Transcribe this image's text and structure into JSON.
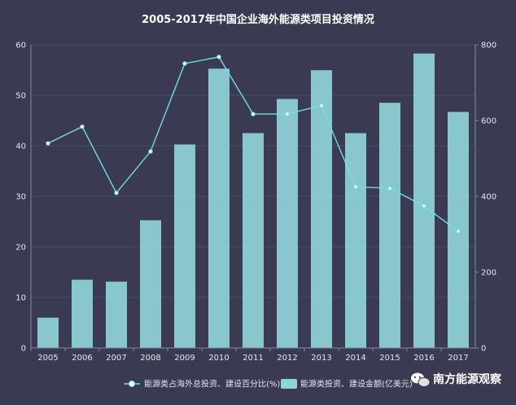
{
  "chart_data": {
    "type": "bar+line",
    "title": "2005-2017年中国企业海外能源类项目投资情况",
    "categories": [
      "2005",
      "2006",
      "2007",
      "2008",
      "2009",
      "2010",
      "2011",
      "2012",
      "2013",
      "2014",
      "2015",
      "2016",
      "2017"
    ],
    "series": [
      {
        "name": "能源类投资、建设金额(亿美元)",
        "type": "bar",
        "axis": "right",
        "values": [
          80,
          180,
          175,
          337,
          537,
          737,
          567,
          657,
          733,
          567,
          647,
          777,
          623
        ]
      },
      {
        "name": "能源类占海外总投资、建设百分比(%)",
        "type": "line",
        "axis": "left",
        "values": [
          40.5,
          43.8,
          30.7,
          38.9,
          56.3,
          57.6,
          46.3,
          46.3,
          48.0,
          31.9,
          31.6,
          28.1,
          23.1
        ]
      }
    ],
    "y_left": {
      "ylim": [
        0,
        60
      ],
      "ticks": [
        "0",
        "10",
        "20",
        "30",
        "40",
        "50",
        "60"
      ]
    },
    "y_right": {
      "ylim": [
        0,
        800
      ],
      "ticks": [
        "0",
        "200",
        "400",
        "600",
        "800"
      ]
    },
    "grid": true,
    "legend_position": "bottom"
  },
  "watermark": {
    "text": "南方能源观察",
    "icon": "wechat-icon"
  },
  "colors": {
    "background": "#3a3a52",
    "bar": "#8ed4d8",
    "line": "#6fe0e6"
  }
}
